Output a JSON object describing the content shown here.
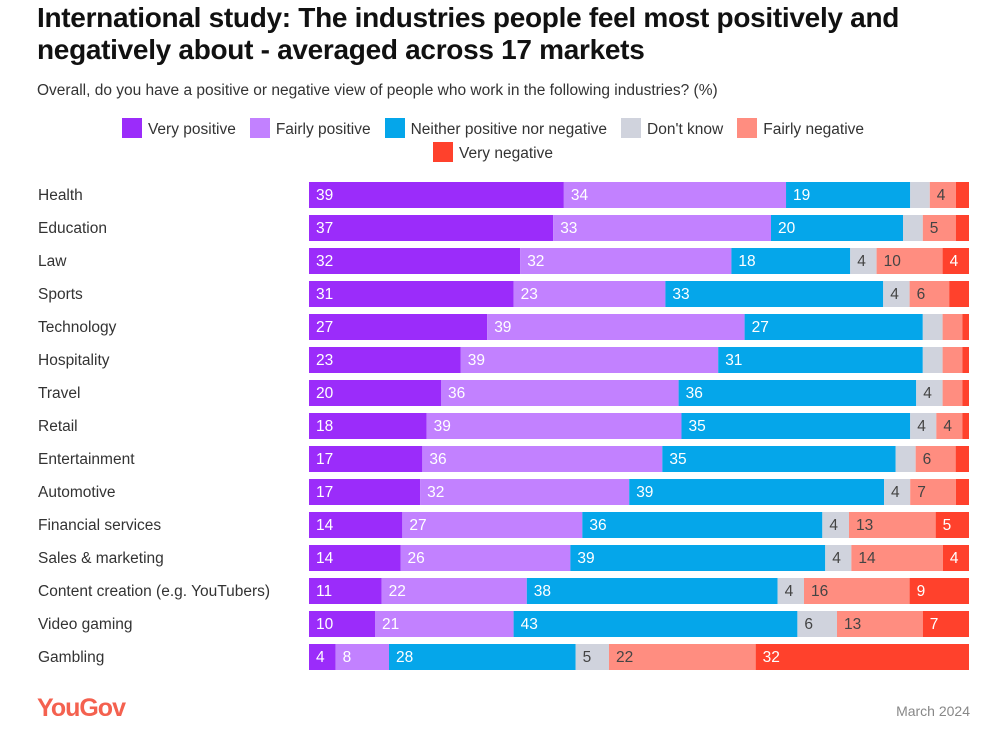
{
  "chart_data": {
    "type": "bar",
    "orientation": "horizontal",
    "stacked": true,
    "title": "International study: The industries people feel most positively and negatively about - averaged across 17 markets",
    "subtitle": "Overall, do you have a positive or negative view of people who work in the following industries? (%)",
    "legend_placement": "top",
    "grid": false,
    "categories": [
      "Health",
      "Education",
      "Law",
      "Sports",
      "Technology",
      "Hospitality",
      "Travel",
      "Retail",
      "Entertainment",
      "Automotive",
      "Financial services",
      "Sales & marketing",
      "Content creation (e.g. YouTubers)",
      "Video gaming",
      "Gambling"
    ],
    "series": [
      {
        "name": "Very positive",
        "color": "#9b2cfa",
        "values": [
          39,
          37,
          32,
          31,
          27,
          23,
          20,
          18,
          17,
          17,
          14,
          14,
          11,
          10,
          4
        ]
      },
      {
        "name": "Fairly positive",
        "color": "#c281ff",
        "values": [
          34,
          33,
          32,
          23,
          39,
          39,
          36,
          39,
          36,
          32,
          27,
          26,
          22,
          21,
          8
        ]
      },
      {
        "name": "Neither positive nor negative",
        "color": "#05a6ea",
        "values": [
          19,
          20,
          18,
          33,
          27,
          31,
          36,
          35,
          35,
          39,
          36,
          39,
          38,
          43,
          28
        ]
      },
      {
        "name": "Don't know",
        "color": "#d0d3dd",
        "values": [
          3,
          3,
          4,
          4,
          3,
          3,
          4,
          4,
          3,
          4,
          4,
          4,
          4,
          6,
          5
        ]
      },
      {
        "name": "Fairly negative",
        "color": "#ff8d80",
        "values": [
          4,
          5,
          10,
          6,
          3,
          3,
          3,
          4,
          6,
          7,
          13,
          14,
          16,
          13,
          22
        ]
      },
      {
        "name": "Very negative",
        "color": "#ff412c",
        "values": [
          2,
          2,
          4,
          3,
          1,
          1,
          1,
          1,
          2,
          2,
          5,
          4,
          9,
          7,
          32
        ]
      }
    ],
    "xlim": [
      0,
      100
    ]
  },
  "footer": {
    "brand": "YouGov",
    "date": "March 2024"
  }
}
